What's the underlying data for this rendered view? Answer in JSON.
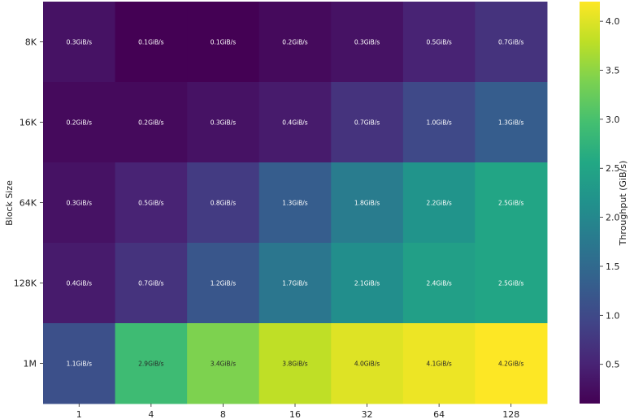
{
  "chart_data": {
    "type": "heatmap",
    "title": "",
    "xlabel": "",
    "ylabel": "Block Size",
    "colorbar_label": "Throughput (GiB/s)",
    "colormap": "viridis",
    "vmin": 0.1,
    "vmax": 4.2,
    "colorbar_ticks": [
      0.5,
      1.0,
      1.5,
      2.0,
      2.5,
      3.0,
      3.5,
      4.0
    ],
    "colorbar_tick_labels": [
      "0.5",
      "1.0",
      "1.5",
      "2.0",
      "2.5",
      "3.0",
      "3.5",
      "4.0"
    ],
    "columns": [
      "1",
      "4",
      "8",
      "16",
      "32",
      "64",
      "128"
    ],
    "rows": [
      "8K",
      "16K",
      "64K",
      "128K",
      "1M"
    ],
    "values": [
      [
        0.3,
        0.1,
        0.1,
        0.2,
        0.3,
        0.5,
        0.7
      ],
      [
        0.2,
        0.2,
        0.3,
        0.4,
        0.7,
        1.0,
        1.3
      ],
      [
        0.3,
        0.5,
        0.8,
        1.3,
        1.8,
        2.2,
        2.5
      ],
      [
        0.4,
        0.7,
        1.2,
        1.7,
        2.1,
        2.4,
        2.5
      ],
      [
        1.1,
        2.9,
        3.4,
        3.8,
        4.0,
        4.1,
        4.2
      ]
    ],
    "labels": [
      [
        "0.3GiB/s",
        "0.1GiB/s",
        "0.1GiB/s",
        "0.2GiB/s",
        "0.3GiB/s",
        "0.5GiB/s",
        "0.7GiB/s"
      ],
      [
        "0.2GiB/s",
        "0.2GiB/s",
        "0.3GiB/s",
        "0.4GiB/s",
        "0.7GiB/s",
        "1.0GiB/s",
        "1.3GiB/s"
      ],
      [
        "0.3GiB/s",
        "0.5GiB/s",
        "0.8GiB/s",
        "1.3GiB/s",
        "1.8GiB/s",
        "2.2GiB/s",
        "2.5GiB/s"
      ],
      [
        "0.4GiB/s",
        "0.7GiB/s",
        "1.2GiB/s",
        "1.7GiB/s",
        "2.1GiB/s",
        "2.4GiB/s",
        "2.5GiB/s"
      ],
      [
        "1.1GiB/s",
        "2.9GiB/s",
        "3.4GiB/s",
        "3.8GiB/s",
        "4.0GiB/s",
        "4.1GiB/s",
        "4.2GiB/s"
      ]
    ],
    "label_color_light": "#ffffff",
    "label_color_dark": "#262626",
    "grid": false
  }
}
